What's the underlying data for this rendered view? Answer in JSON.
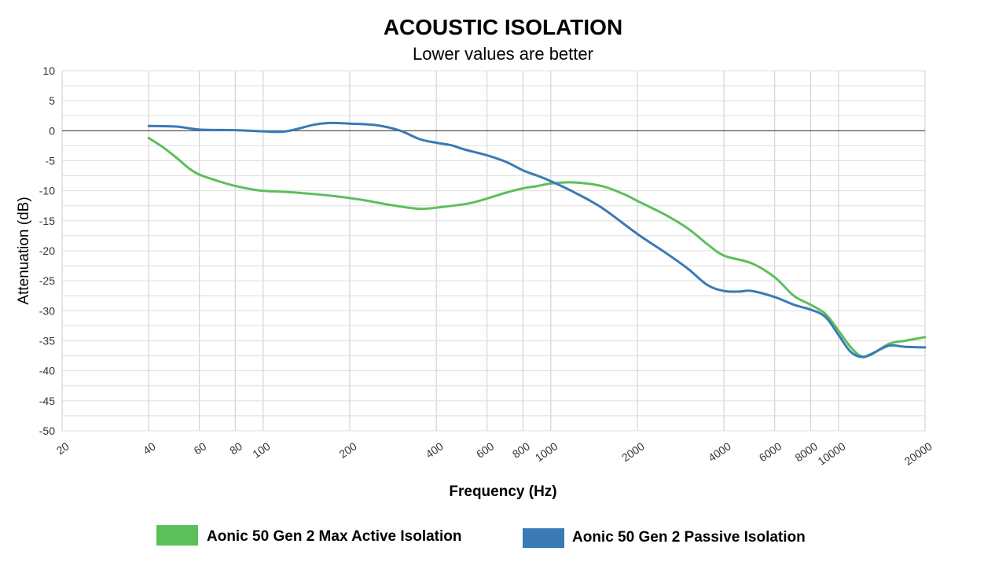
{
  "chart_data": {
    "type": "line",
    "title": "ACOUSTIC ISOLATION",
    "subtitle": "Lower values are better",
    "xlabel": "Frequency (Hz)",
    "ylabel": "Attenuation (dB)",
    "xscale": "log",
    "xlim": [
      20,
      20000
    ],
    "ylim": [
      -50,
      10
    ],
    "xticks": [
      20,
      40,
      60,
      80,
      100,
      200,
      400,
      600,
      800,
      1000,
      2000,
      4000,
      6000,
      8000,
      10000,
      20000
    ],
    "yticks": [
      10,
      5,
      0,
      -5,
      -10,
      -15,
      -20,
      -25,
      -30,
      -35,
      -40,
      -45,
      -50
    ],
    "grid": true,
    "zero_line": true,
    "legend_position": "bottom",
    "series": [
      {
        "name": "Aonic 50 Gen 2 Max Active Isolation",
        "color": "#5cbf5c",
        "points": [
          [
            40,
            -1.2
          ],
          [
            45,
            -2.8
          ],
          [
            50,
            -4.5
          ],
          [
            55,
            -6.2
          ],
          [
            60,
            -7.3
          ],
          [
            70,
            -8.4
          ],
          [
            80,
            -9.2
          ],
          [
            90,
            -9.7
          ],
          [
            100,
            -10.0
          ],
          [
            130,
            -10.3
          ],
          [
            170,
            -10.8
          ],
          [
            220,
            -11.5
          ],
          [
            280,
            -12.4
          ],
          [
            350,
            -13.0
          ],
          [
            420,
            -12.7
          ],
          [
            520,
            -12.1
          ],
          [
            600,
            -11.3
          ],
          [
            700,
            -10.3
          ],
          [
            800,
            -9.6
          ],
          [
            900,
            -9.2
          ],
          [
            1000,
            -8.8
          ],
          [
            1200,
            -8.6
          ],
          [
            1500,
            -9.2
          ],
          [
            1800,
            -10.6
          ],
          [
            2000,
            -11.7
          ],
          [
            2500,
            -14.0
          ],
          [
            3000,
            -16.3
          ],
          [
            3500,
            -18.9
          ],
          [
            4000,
            -20.8
          ],
          [
            5000,
            -22.1
          ],
          [
            6000,
            -24.4
          ],
          [
            7000,
            -27.5
          ],
          [
            8000,
            -29.0
          ],
          [
            9000,
            -30.5
          ],
          [
            10000,
            -33.3
          ],
          [
            11000,
            -36.0
          ],
          [
            12000,
            -37.6
          ],
          [
            13000,
            -37.3
          ],
          [
            15000,
            -35.5
          ],
          [
            17000,
            -35.0
          ],
          [
            20000,
            -34.4
          ]
        ]
      },
      {
        "name": "Aonic 50 Gen 2 Passive Isolation",
        "color": "#3a7ab5",
        "points": [
          [
            40,
            0.8
          ],
          [
            50,
            0.7
          ],
          [
            60,
            0.2
          ],
          [
            80,
            0.1
          ],
          [
            100,
            -0.1
          ],
          [
            120,
            -0.1
          ],
          [
            150,
            1.0
          ],
          [
            170,
            1.3
          ],
          [
            200,
            1.2
          ],
          [
            250,
            0.9
          ],
          [
            300,
            0.0
          ],
          [
            350,
            -1.4
          ],
          [
            400,
            -2.0
          ],
          [
            450,
            -2.4
          ],
          [
            500,
            -3.1
          ],
          [
            600,
            -4.1
          ],
          [
            700,
            -5.2
          ],
          [
            800,
            -6.6
          ],
          [
            900,
            -7.5
          ],
          [
            1000,
            -8.4
          ],
          [
            1200,
            -10.2
          ],
          [
            1500,
            -12.8
          ],
          [
            2000,
            -17.2
          ],
          [
            2500,
            -20.3
          ],
          [
            3000,
            -23.0
          ],
          [
            3500,
            -25.7
          ],
          [
            4000,
            -26.7
          ],
          [
            4500,
            -26.8
          ],
          [
            5000,
            -26.7
          ],
          [
            6000,
            -27.7
          ],
          [
            7000,
            -29.0
          ],
          [
            8000,
            -29.8
          ],
          [
            9000,
            -31.0
          ],
          [
            10000,
            -34.0
          ],
          [
            11000,
            -36.8
          ],
          [
            12000,
            -37.7
          ],
          [
            13000,
            -37.2
          ],
          [
            15000,
            -35.8
          ],
          [
            17000,
            -36.0
          ],
          [
            20000,
            -36.1
          ]
        ]
      }
    ]
  }
}
